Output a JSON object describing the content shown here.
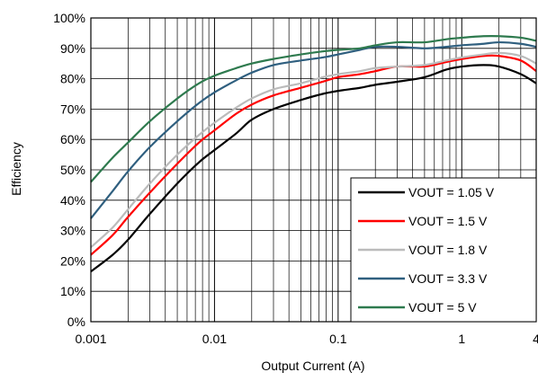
{
  "chart_data": {
    "type": "line",
    "title": "",
    "xlabel": "Output Current (A)",
    "ylabel": "Efficiency",
    "x_scale": "log",
    "xlim": [
      0.001,
      4
    ],
    "ylim": [
      0,
      100
    ],
    "x_ticks": [
      0.001,
      0.01,
      0.1,
      1,
      4
    ],
    "x_tick_labels": [
      "0.001",
      "0.01",
      "0.1",
      "1",
      "4"
    ],
    "y_ticks": [
      0,
      10,
      20,
      30,
      40,
      50,
      60,
      70,
      80,
      90,
      100
    ],
    "y_tick_labels": [
      "0%",
      "10%",
      "20%",
      "30%",
      "40%",
      "50%",
      "60%",
      "70%",
      "80%",
      "90%",
      "100%"
    ],
    "grid": true,
    "legend_position": "bottom-right",
    "series": [
      {
        "name": "VOUT = 1.05 V",
        "color": "#000000",
        "points": [
          [
            0.001,
            16.5
          ],
          [
            0.0015,
            22
          ],
          [
            0.002,
            27
          ],
          [
            0.003,
            35.5
          ],
          [
            0.005,
            45.5
          ],
          [
            0.0075,
            52.5
          ],
          [
            0.01,
            56.5
          ],
          [
            0.015,
            62
          ],
          [
            0.02,
            66.5
          ],
          [
            0.03,
            70
          ],
          [
            0.05,
            73
          ],
          [
            0.075,
            75
          ],
          [
            0.1,
            76
          ],
          [
            0.15,
            77
          ],
          [
            0.2,
            78
          ],
          [
            0.3,
            79
          ],
          [
            0.5,
            80.5
          ],
          [
            0.75,
            83
          ],
          [
            1,
            84
          ],
          [
            1.5,
            84.5
          ],
          [
            2,
            84
          ],
          [
            3,
            81.5
          ],
          [
            4,
            78.5
          ]
        ]
      },
      {
        "name": "VOUT = 1.5 V",
        "color": "#ff0000",
        "points": [
          [
            0.001,
            22
          ],
          [
            0.0015,
            28.5
          ],
          [
            0.002,
            34.5
          ],
          [
            0.003,
            42.5
          ],
          [
            0.005,
            52
          ],
          [
            0.0075,
            59
          ],
          [
            0.01,
            63
          ],
          [
            0.015,
            68.5
          ],
          [
            0.02,
            71.5
          ],
          [
            0.03,
            74.5
          ],
          [
            0.05,
            77
          ],
          [
            0.075,
            79
          ],
          [
            0.1,
            80.5
          ],
          [
            0.15,
            81.5
          ],
          [
            0.2,
            82.5
          ],
          [
            0.3,
            84
          ],
          [
            0.5,
            84
          ],
          [
            0.75,
            85.5
          ],
          [
            1,
            86.5
          ],
          [
            1.5,
            87.5
          ],
          [
            2,
            87.5
          ],
          [
            3,
            86
          ],
          [
            4,
            82.5
          ]
        ]
      },
      {
        "name": "VOUT = 1.8 V",
        "color": "#bbbbbb",
        "points": [
          [
            0.001,
            24.5
          ],
          [
            0.0015,
            31
          ],
          [
            0.002,
            37
          ],
          [
            0.003,
            45.5
          ],
          [
            0.005,
            55
          ],
          [
            0.0075,
            61.5
          ],
          [
            0.01,
            65.5
          ],
          [
            0.015,
            70.5
          ],
          [
            0.02,
            73.5
          ],
          [
            0.03,
            76.5
          ],
          [
            0.05,
            78.5
          ],
          [
            0.075,
            80.5
          ],
          [
            0.1,
            81.5
          ],
          [
            0.15,
            82.5
          ],
          [
            0.2,
            83.5
          ],
          [
            0.3,
            84
          ],
          [
            0.5,
            84.5
          ],
          [
            0.75,
            86
          ],
          [
            1,
            87
          ],
          [
            1.5,
            88
          ],
          [
            2,
            88.5
          ],
          [
            3,
            87.5
          ],
          [
            4,
            85
          ]
        ]
      },
      {
        "name": "VOUT = 3.3 V",
        "color": "#2f5f7f",
        "points": [
          [
            0.001,
            34
          ],
          [
            0.0015,
            43
          ],
          [
            0.002,
            49.5
          ],
          [
            0.003,
            57.5
          ],
          [
            0.005,
            66
          ],
          [
            0.0075,
            72
          ],
          [
            0.01,
            75.5
          ],
          [
            0.015,
            79.5
          ],
          [
            0.02,
            82
          ],
          [
            0.03,
            84.5
          ],
          [
            0.05,
            86
          ],
          [
            0.075,
            87
          ],
          [
            0.1,
            88
          ],
          [
            0.15,
            89.5
          ],
          [
            0.2,
            90.5
          ],
          [
            0.3,
            90.5
          ],
          [
            0.5,
            90
          ],
          [
            0.75,
            90.5
          ],
          [
            1,
            91
          ],
          [
            1.5,
            91.5
          ],
          [
            2,
            92
          ],
          [
            3,
            91.5
          ],
          [
            4,
            90.5
          ]
        ]
      },
      {
        "name": "VOUT = 5 V",
        "color": "#2e7a4e",
        "points": [
          [
            0.001,
            46
          ],
          [
            0.0015,
            54
          ],
          [
            0.002,
            59
          ],
          [
            0.003,
            66
          ],
          [
            0.005,
            73.5
          ],
          [
            0.0075,
            78.5
          ],
          [
            0.01,
            81
          ],
          [
            0.015,
            83.5
          ],
          [
            0.02,
            85
          ],
          [
            0.03,
            86.5
          ],
          [
            0.05,
            88
          ],
          [
            0.075,
            89
          ],
          [
            0.1,
            89.5
          ],
          [
            0.15,
            90
          ],
          [
            0.2,
            91
          ],
          [
            0.3,
            92
          ],
          [
            0.5,
            92
          ],
          [
            0.75,
            93
          ],
          [
            1,
            93.5
          ],
          [
            1.5,
            94
          ],
          [
            2,
            94
          ],
          [
            3,
            93.5
          ],
          [
            4,
            92.5
          ]
        ]
      }
    ]
  }
}
